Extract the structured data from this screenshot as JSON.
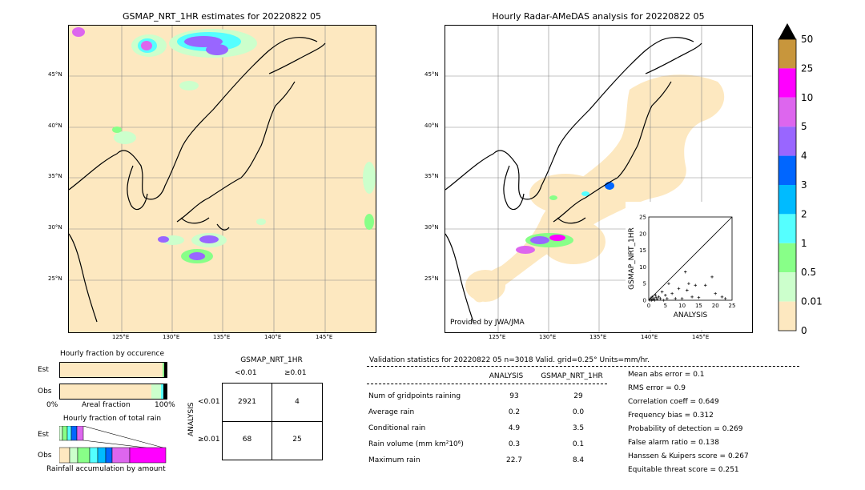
{
  "left_map": {
    "title": "GSMAP_NRT_1HR estimates for 20220822 05",
    "lat_ticks": [
      "45°N",
      "40°N",
      "35°N",
      "30°N",
      "25°N"
    ],
    "lon_ticks": [
      "125°E",
      "130°E",
      "135°E",
      "140°E",
      "145°E"
    ]
  },
  "right_map": {
    "title": "Hourly Radar-AMeDAS analysis for 20220822 05",
    "lat_ticks": [
      "45°N",
      "40°N",
      "35°N",
      "30°N",
      "25°N"
    ],
    "lon_ticks": [
      "125°E",
      "130°E",
      "135°E",
      "140°E",
      "145°E"
    ],
    "credit": "Provided by JWA/JMA"
  },
  "colorbar": {
    "labels": [
      "50",
      "25",
      "10",
      "5",
      "4",
      "3",
      "2",
      "1",
      "0.5",
      "0.01",
      "0"
    ],
    "colors": [
      "#c8963c",
      "#ff00ff",
      "#dd66ee",
      "#9966ff",
      "#0066ff",
      "#00bbff",
      "#55ffff",
      "#88ff88",
      "#ccffcc",
      "#fde8c0"
    ]
  },
  "fraction_charts": {
    "title_occurrence": "Hourly fraction by occurence",
    "title_total": "Hourly fraction of total rain",
    "est_label": "Est",
    "obs_label": "Obs",
    "axis_left": "0%",
    "axis_mid": "Areal fraction",
    "axis_right": "100%",
    "bottom_label": "Rainfall accumulation by amount"
  },
  "contingency": {
    "title": "GSMAP_NRT_1HR",
    "col_headers": [
      "<0.01",
      "≥0.01"
    ],
    "row_axis": "ANALYSIS",
    "row_headers": [
      "<0.01",
      "≥0.01"
    ],
    "cells": [
      [
        "2921",
        "4"
      ],
      [
        "68",
        "25"
      ]
    ]
  },
  "validation": {
    "header": "Validation statistics for 20220822 05  n=3018 Valid. grid=0.25°  Units=mm/hr.",
    "col1": "ANALYSIS",
    "col2": "GSMAP_NRT_1HR",
    "rows": [
      {
        "label": "Num of gridpoints raining",
        "a": "93",
        "b": "29"
      },
      {
        "label": "Average rain",
        "a": "0.2",
        "b": "0.0"
      },
      {
        "label": "Conditional rain",
        "a": "4.9",
        "b": "3.5"
      },
      {
        "label": "Rain volume (mm km²10⁶)",
        "a": "0.3",
        "b": "0.1"
      },
      {
        "label": "Maximum rain",
        "a": "22.7",
        "b": "8.4"
      }
    ],
    "scores": [
      "Mean abs error =    0.1",
      "RMS error =    0.9",
      "Correlation coeff =  0.649",
      "Frequency bias =  0.312",
      "Probability of detection =  0.269",
      "False alarm ratio =  0.138",
      "Hanssen & Kuipers score =  0.267",
      "Equitable threat score =  0.251"
    ]
  },
  "chart_data": {
    "type": "scatter",
    "xlabel": "ANALYSIS",
    "ylabel": "GSMAP_NRT_1HR",
    "xlim": [
      0,
      25
    ],
    "ylim": [
      0,
      25
    ],
    "ticks": [
      "0",
      "5",
      "10",
      "15",
      "20",
      "25"
    ],
    "x": [
      0.3,
      0.5,
      0.8,
      1.0,
      1.2,
      1.5,
      1.8,
      2.0,
      2.2,
      2.5,
      3.0,
      3.5,
      4.0,
      4.5,
      5.0,
      5.5,
      6.0,
      7.0,
      8.0,
      9.0,
      10.0,
      11.0,
      11.5,
      12.0,
      13.0,
      14.0,
      15.0,
      17.0,
      19.0,
      20.0,
      22.0,
      23.0
    ],
    "y": [
      0.0,
      0.5,
      0.0,
      1.0,
      0.2,
      0.5,
      0.0,
      1.5,
      0.8,
      0.3,
      1.0,
      0.5,
      2.5,
      0.0,
      1.5,
      0.5,
      5.0,
      2.0,
      0.5,
      3.5,
      0.5,
      8.5,
      3.0,
      5.0,
      1.0,
      4.5,
      0.8,
      4.5,
      7.0,
      2.0,
      1.0,
      0.5
    ]
  }
}
